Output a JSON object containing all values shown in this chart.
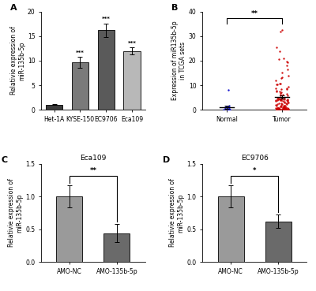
{
  "panel_A": {
    "categories": [
      "Het-1A",
      "KYSE-150",
      "EC9706",
      "Eca109"
    ],
    "values": [
      1.0,
      9.7,
      16.2,
      12.0
    ],
    "errors": [
      0.08,
      1.1,
      1.4,
      0.7
    ],
    "colors": [
      "#3c3c3c",
      "#7a7a7a",
      "#5a5a5a",
      "#b8b8b8"
    ],
    "ylabel": "Relativie expression of\nmiR-135b-5p",
    "ylim": [
      0,
      20
    ],
    "yticks": [
      0,
      5,
      10,
      15,
      20
    ],
    "sig_labels": [
      "",
      "***",
      "***",
      "***"
    ],
    "label": "A"
  },
  "panel_B": {
    "ylim": [
      0,
      40
    ],
    "yticks": [
      0,
      10,
      20,
      30,
      40
    ],
    "ylabel": "Expression of miR135b-5p\nin TCGA sets",
    "categories": [
      "Normal",
      "Tumor"
    ],
    "sig": "**",
    "label": "B",
    "normal_color": "#0000cc",
    "tumor_color": "#cc0000"
  },
  "panel_C": {
    "categories": [
      "AMO-NC",
      "AMO-135b-5p"
    ],
    "values": [
      1.0,
      0.44
    ],
    "errors": [
      0.17,
      0.14
    ],
    "colors": [
      "#9a9a9a",
      "#6a6a6a"
    ],
    "ylabel": "Relativie expression of\nmiR-135b-5p",
    "ylim": [
      0,
      1.5
    ],
    "yticks": [
      0.0,
      0.5,
      1.0,
      1.5
    ],
    "title": "Eca109",
    "sig": "**",
    "label": "C"
  },
  "panel_D": {
    "categories": [
      "AMO-NC",
      "AMO-135b-5p"
    ],
    "values": [
      1.0,
      0.62
    ],
    "errors": [
      0.17,
      0.1
    ],
    "colors": [
      "#9a9a9a",
      "#6a6a6a"
    ],
    "ylabel": "Relativie expression of\nmiR-135b-5p",
    "ylim": [
      0,
      1.5
    ],
    "yticks": [
      0.0,
      0.5,
      1.0,
      1.5
    ],
    "title": "EC9706",
    "sig": "*",
    "label": "D"
  },
  "figure_bg": "#ffffff"
}
